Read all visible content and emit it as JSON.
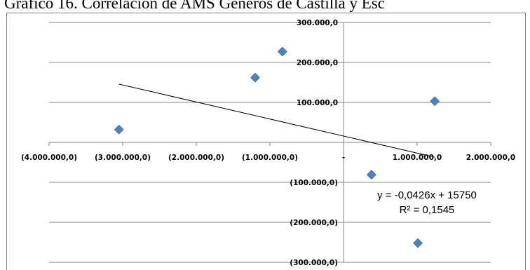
{
  "title": "Gráfico 16. Correlación de AMS Géneros de Castilla y Esc",
  "chart_data": {
    "type": "scatter",
    "title": "Gráfico 16. Correlación de AMS Géneros de Castilla y Esc",
    "xlabel": "",
    "ylabel": "",
    "xlim": [
      -4000000,
      2000000
    ],
    "ylim": [
      -300000,
      300000
    ],
    "x_ticks": [
      -4000000,
      -3000000,
      -2000000,
      -1000000,
      0,
      1000000,
      2000000
    ],
    "x_tick_labels": [
      "(4.000.000,0)",
      "(3.000.000,0)",
      "(2.000.000,0)",
      "(1.000.000,0)",
      "-",
      "1.000.000,0",
      "2.000.000,0"
    ],
    "y_ticks": [
      300000,
      200000,
      100000,
      -100000,
      -200000,
      -300000
    ],
    "y_tick_labels": [
      "300.000,0",
      "200.000,0",
      "100.000,0",
      "(100.000,0)",
      "(200.000,0)",
      "(300.000,0)"
    ],
    "grid": true,
    "legend": "none",
    "marker_color": "#4f81bd",
    "series": [
      {
        "marker": "diamond",
        "points": [
          {
            "x": -3050000,
            "y": 32000
          },
          {
            "x": -1200000,
            "y": 162000
          },
          {
            "x": -830000,
            "y": 227000
          },
          {
            "x": 380000,
            "y": -81000
          },
          {
            "x": 1010000,
            "y": -252000
          },
          {
            "x": 1240000,
            "y": 103000
          }
        ]
      }
    ],
    "trendline": {
      "type": "linear",
      "slope": -0.0426,
      "intercept": 15750,
      "x_range": [
        -3050000,
        1240000
      ],
      "equation_label": "y = -0,0426x + 15750",
      "r2_label": "R² = 0,1545"
    }
  }
}
